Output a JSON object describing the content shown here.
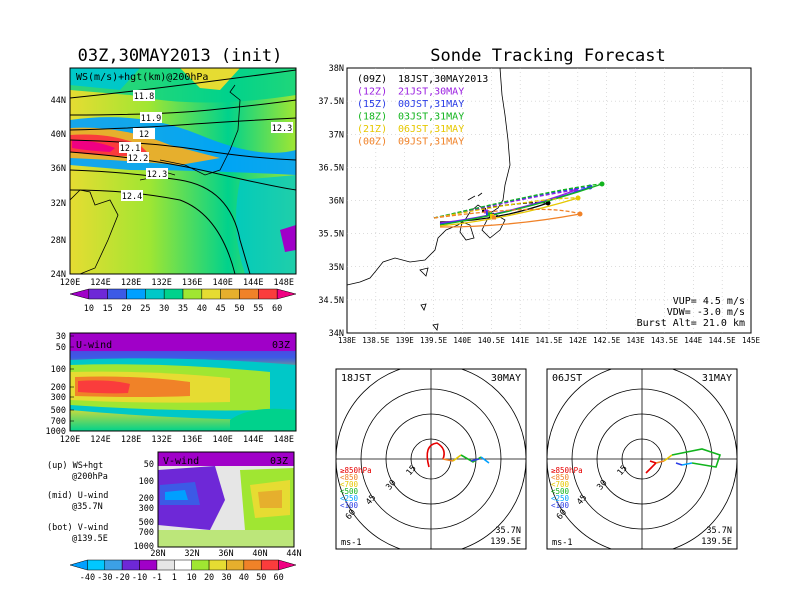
{
  "left_title": "03Z,30MAY2013 (init)",
  "right_title": "Sonde Tracking Forecast",
  "top_map": {
    "label": "WS(m/s)+hgt(km)@200hPa",
    "lat_ticks": [
      "44N",
      "40N",
      "36N",
      "32N",
      "28N",
      "24N"
    ],
    "lon_ticks": [
      "120E",
      "124E",
      "128E",
      "132E",
      "136E",
      "140E",
      "144E",
      "148E"
    ],
    "contour_labels": [
      "11.8",
      "11.9",
      "12",
      "12.1",
      "12.2",
      "12.3",
      "12.4",
      "12.3"
    ],
    "colorbar_labels": [
      "10",
      "15",
      "20",
      "25",
      "30",
      "35",
      "40",
      "45",
      "50",
      "55",
      "60"
    ],
    "colorbar_colors": [
      "#a000c8",
      "#6e28d7",
      "#3c5ae6",
      "#00a0ff",
      "#00c8c8",
      "#00d28c",
      "#a0e632",
      "#e6dc32",
      "#e6af2d",
      "#f08228",
      "#fa3c3c",
      "#f00082"
    ]
  },
  "u_panel": {
    "label": "U-wind",
    "time": "03Z",
    "p_ticks": [
      "30",
      "50",
      "100",
      "200",
      "300",
      "500",
      "700",
      "1000"
    ],
    "lon_ticks": [
      "120E",
      "124E",
      "128E",
      "132E",
      "136E",
      "140E",
      "144E",
      "148E"
    ]
  },
  "v_panel": {
    "label": "V-wind",
    "time": "03Z",
    "p_ticks": [
      "50",
      "100",
      "200",
      "300",
      "500",
      "700",
      "1000"
    ],
    "lat_ticks": [
      "28N",
      "32N",
      "36N",
      "40N",
      "44N"
    ],
    "colorbar_labels": [
      "-40",
      "-30",
      "-20",
      "-10",
      "-1",
      "1",
      "10",
      "20",
      "30",
      "40",
      "50",
      "60"
    ],
    "colorbar_colors": [
      "#00a0ff",
      "#00c8ff",
      "#3ca0e6",
      "#6e28d7",
      "#a000c8",
      "#e6e6e6",
      "#ffffff",
      "#a0e632",
      "#e6dc32",
      "#e6af2d",
      "#f08228",
      "#fa3c3c",
      "#f00082"
    ]
  },
  "legend_notes": [
    {
      "a": "(up) WS+hgt",
      "b": "@200hPa"
    },
    {
      "a": "(mid) U-wind",
      "b": "@35.7N"
    },
    {
      "a": "(bot) V-wind",
      "b": "@139.5E"
    }
  ],
  "track_map": {
    "lat_ticks": [
      "38N",
      "37.5N",
      "37N",
      "36.5N",
      "36N",
      "35.5N",
      "35N",
      "34.5N",
      "34N"
    ],
    "lon_ticks": [
      "138E",
      "138.5E",
      "139E",
      "139.5E",
      "140E",
      "140.5E",
      "141E",
      "141.5E",
      "142E",
      "142.5E",
      "143E",
      "143.5E",
      "144E",
      "144.5E",
      "145E"
    ],
    "launches": [
      {
        "utc": "(09Z)",
        "jst": "18JST,30MAY2013",
        "color": "#000000"
      },
      {
        "utc": "(12Z)",
        "jst": "21JST,30MAY",
        "color": "#9a1ee0"
      },
      {
        "utc": "(15Z)",
        "jst": "00JST,31MAY",
        "color": "#2a3ce6"
      },
      {
        "utc": "(18Z)",
        "jst": "03JST,31MAY",
        "color": "#12b41e"
      },
      {
        "utc": "(21Z)",
        "jst": "06JST,31MAY",
        "color": "#e6c800"
      },
      {
        "utc": "(00Z)",
        "jst": "09JST,31MAY",
        "color": "#f08228"
      }
    ],
    "params": [
      "VUP= 4.5 m/s",
      "VDW= -3.0 m/s",
      "Burst Alt= 21.0 km"
    ]
  },
  "hodo_left": {
    "time": "18JST",
    "date": "30MAY",
    "ring_labels": [
      "15",
      "30",
      "45",
      "60"
    ],
    "levels": [
      {
        "label": "≥850hPa",
        "color": "#e60000"
      },
      {
        "label": "<850",
        "color": "#f08228"
      },
      {
        "label": "<700",
        "color": "#e6c800"
      },
      {
        "label": "<500",
        "color": "#12b41e"
      },
      {
        "label": "<250",
        "color": "#00a0ff"
      },
      {
        "label": "<100",
        "color": "#2a3ce6"
      }
    ],
    "unit": "ms-1",
    "lat": "35.7N",
    "lon": "139.5E"
  },
  "hodo_right": {
    "time": "06JST",
    "date": "31MAY",
    "ring_labels": [
      "15",
      "30",
      "45",
      "60"
    ],
    "unit": "ms-1",
    "lat": "35.7N",
    "lon": "139.5E"
  }
}
